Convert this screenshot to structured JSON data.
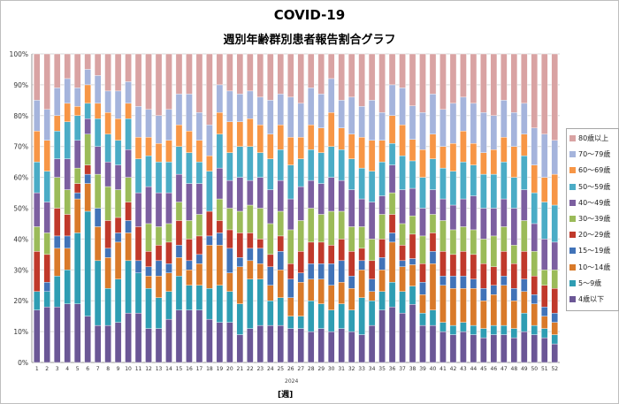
{
  "chart_data": {
    "type": "bar",
    "stacked": true,
    "percent": true,
    "title": "COVID-19",
    "subtitle": "週別年齢群別患者報告割合グラフ",
    "xlabel": "[週]",
    "year": "2024",
    "categories": [
      "1",
      "2",
      "3",
      "4",
      "5",
      "6",
      "7",
      "8",
      "9",
      "10",
      "11",
      "12",
      "13",
      "14",
      "15",
      "16",
      "17",
      "18",
      "19",
      "20",
      "21",
      "22",
      "23",
      "24",
      "25",
      "26",
      "27",
      "28",
      "29",
      "30",
      "31",
      "32",
      "33",
      "34",
      "35",
      "36",
      "37",
      "38",
      "39",
      "40",
      "41",
      "42",
      "43",
      "44",
      "45",
      "46",
      "47",
      "48",
      "49",
      "50",
      "51",
      "52"
    ],
    "yticks": [
      "0%",
      "10%",
      "20%",
      "30%",
      "40%",
      "50%",
      "60%",
      "70%",
      "80%",
      "90%",
      "100%"
    ],
    "ylim": [
      0,
      100
    ],
    "grid": true,
    "legend_position": "right",
    "series": [
      {
        "name": "4歳以下",
        "color": "#6b5796",
        "values": [
          17,
          18,
          18,
          19,
          19,
          15,
          12,
          12,
          13,
          16,
          16,
          11,
          11,
          14,
          17,
          17,
          17,
          14,
          13,
          13,
          9,
          11,
          12,
          12,
          12,
          11,
          11,
          10,
          11,
          10,
          11,
          10,
          9,
          12,
          17,
          18,
          16,
          19,
          12,
          12,
          10,
          9,
          10,
          9,
          8,
          9,
          9,
          8,
          10,
          9,
          8,
          6
        ]
      },
      {
        "name": "5～9歳",
        "color": "#2f9db3",
        "values": [
          6,
          5,
          10,
          11,
          23,
          34,
          21,
          12,
          14,
          17,
          13,
          13,
          10,
          9,
          11,
          8,
          8,
          10,
          12,
          10,
          10,
          16,
          15,
          8,
          9,
          4,
          4,
          10,
          8,
          7,
          8,
          7,
          12,
          8,
          6,
          8,
          7,
          6,
          4,
          5,
          3,
          3,
          3,
          3,
          3,
          3,
          3,
          3,
          6,
          3,
          3,
          3
        ]
      },
      {
        "name": "10～14歳",
        "color": "#d97a2a",
        "values": [
          0,
          0,
          9,
          7,
          11,
          9,
          11,
          10,
          12,
          9,
          0,
          4,
          7,
          6,
          6,
          5,
          7,
          14,
          13,
          6,
          12,
          6,
          5,
          5,
          9,
          6,
          11,
          7,
          8,
          8,
          7,
          7,
          9,
          3,
          7,
          13,
          8,
          7,
          6,
          15,
          12,
          12,
          11,
          12,
          9,
          10,
          13,
          9,
          7,
          7,
          4,
          4
        ]
      },
      {
        "name": "15～19歳",
        "color": "#4173b8",
        "values": [
          0,
          3,
          4,
          4,
          2,
          3,
          6,
          3,
          3,
          4,
          4,
          3,
          5,
          3,
          4,
          3,
          3,
          3,
          4,
          8,
          3,
          4,
          5,
          6,
          6,
          6,
          3,
          5,
          5,
          7,
          7,
          4,
          3,
          4,
          4,
          3,
          2,
          2,
          4,
          4,
          3,
          4,
          4,
          3,
          4,
          3,
          3,
          4,
          4,
          3,
          3,
          3
        ]
      },
      {
        "name": "20～29歳",
        "color": "#c0392b",
        "values": [
          13,
          9,
          9,
          7,
          3,
          3,
          0,
          9,
          5,
          6,
          11,
          5,
          5,
          7,
          8,
          7,
          6,
          8,
          4,
          6,
          8,
          5,
          3,
          4,
          5,
          5,
          7,
          7,
          7,
          6,
          7,
          8,
          4,
          6,
          6,
          6,
          5,
          8,
          6,
          6,
          8,
          7,
          8,
          8,
          8,
          6,
          8,
          8,
          9,
          6,
          7,
          8
        ]
      },
      {
        "name": "30～39歳",
        "color": "#9bbb59",
        "values": [
          8,
          7,
          10,
          8,
          5,
          10,
          11,
          11,
          9,
          8,
          0,
          9,
          6,
          6,
          6,
          6,
          7,
          0,
          7,
          7,
          7,
          9,
          10,
          10,
          8,
          11,
          10,
          11,
          9,
          11,
          9,
          8,
          7,
          7,
          8,
          7,
          7,
          6,
          9,
          6,
          10,
          8,
          8,
          8,
          8,
          10,
          8,
          6,
          10,
          8,
          5,
          6
        ]
      },
      {
        "name": "40～49歳",
        "color": "#7c5fa0",
        "values": [
          11,
          10,
          6,
          10,
          9,
          5,
          9,
          8,
          8,
          9,
          11,
          12,
          11,
          10,
          9,
          12,
          10,
          0,
          10,
          9,
          11,
          8,
          10,
          11,
          10,
          10,
          11,
          9,
          10,
          11,
          10,
          12,
          9,
          12,
          6,
          9,
          11,
          9,
          9,
          8,
          7,
          8,
          9,
          11,
          10,
          9,
          9,
          12,
          10,
          9,
          10,
          9
        ]
      },
      {
        "name": "50～59歳",
        "color": "#4bacc6",
        "values": [
          10,
          10,
          9,
          12,
          8,
          5,
          9,
          9,
          8,
          10,
          11,
          10,
          10,
          10,
          9,
          10,
          7,
          13,
          11,
          9,
          10,
          11,
          8,
          10,
          10,
          11,
          9,
          10,
          10,
          10,
          10,
          10,
          10,
          10,
          11,
          7,
          11,
          9,
          10,
          10,
          10,
          11,
          12,
          10,
          11,
          11,
          12,
          10,
          11,
          10,
          12,
          12
        ]
      },
      {
        "name": "60～69歳",
        "color": "#f79646",
        "values": [
          10,
          10,
          5,
          6,
          3,
          6,
          5,
          7,
          7,
          5,
          7,
          6,
          6,
          7,
          7,
          7,
          7,
          5,
          7,
          10,
          8,
          9,
          9,
          8,
          8,
          9,
          7,
          8,
          8,
          11,
          7,
          8,
          10,
          10,
          7,
          9,
          10,
          7,
          9,
          8,
          7,
          9,
          10,
          7,
          7,
          8,
          8,
          10,
          7,
          9,
          8,
          10
        ]
      },
      {
        "name": "70～79歳",
        "color": "#a5b4dc",
        "values": [
          10,
          10,
          9,
          8,
          6,
          5,
          9,
          7,
          9,
          7,
          10,
          9,
          9,
          10,
          10,
          12,
          9,
          10,
          9,
          10,
          9,
          9,
          9,
          11,
          10,
          13,
          11,
          12,
          11,
          11,
          9,
          12,
          10,
          13,
          9,
          10,
          12,
          11,
          12,
          13,
          12,
          13,
          11,
          13,
          13,
          11,
          12,
          11,
          10,
          12,
          14,
          11
        ]
      },
      {
        "name": "80歳以上",
        "color": "#d9a3a3",
        "values": [
          15,
          18,
          11,
          8,
          11,
          5,
          7,
          12,
          12,
          9,
          17,
          18,
          20,
          18,
          13,
          13,
          19,
          23,
          10,
          12,
          13,
          12,
          14,
          15,
          13,
          14,
          16,
          11,
          13,
          8,
          15,
          14,
          17,
          15,
          19,
          10,
          11,
          17,
          19,
          13,
          18,
          16,
          14,
          16,
          19,
          20,
          15,
          19,
          16,
          24,
          26,
          28
        ]
      }
    ]
  }
}
